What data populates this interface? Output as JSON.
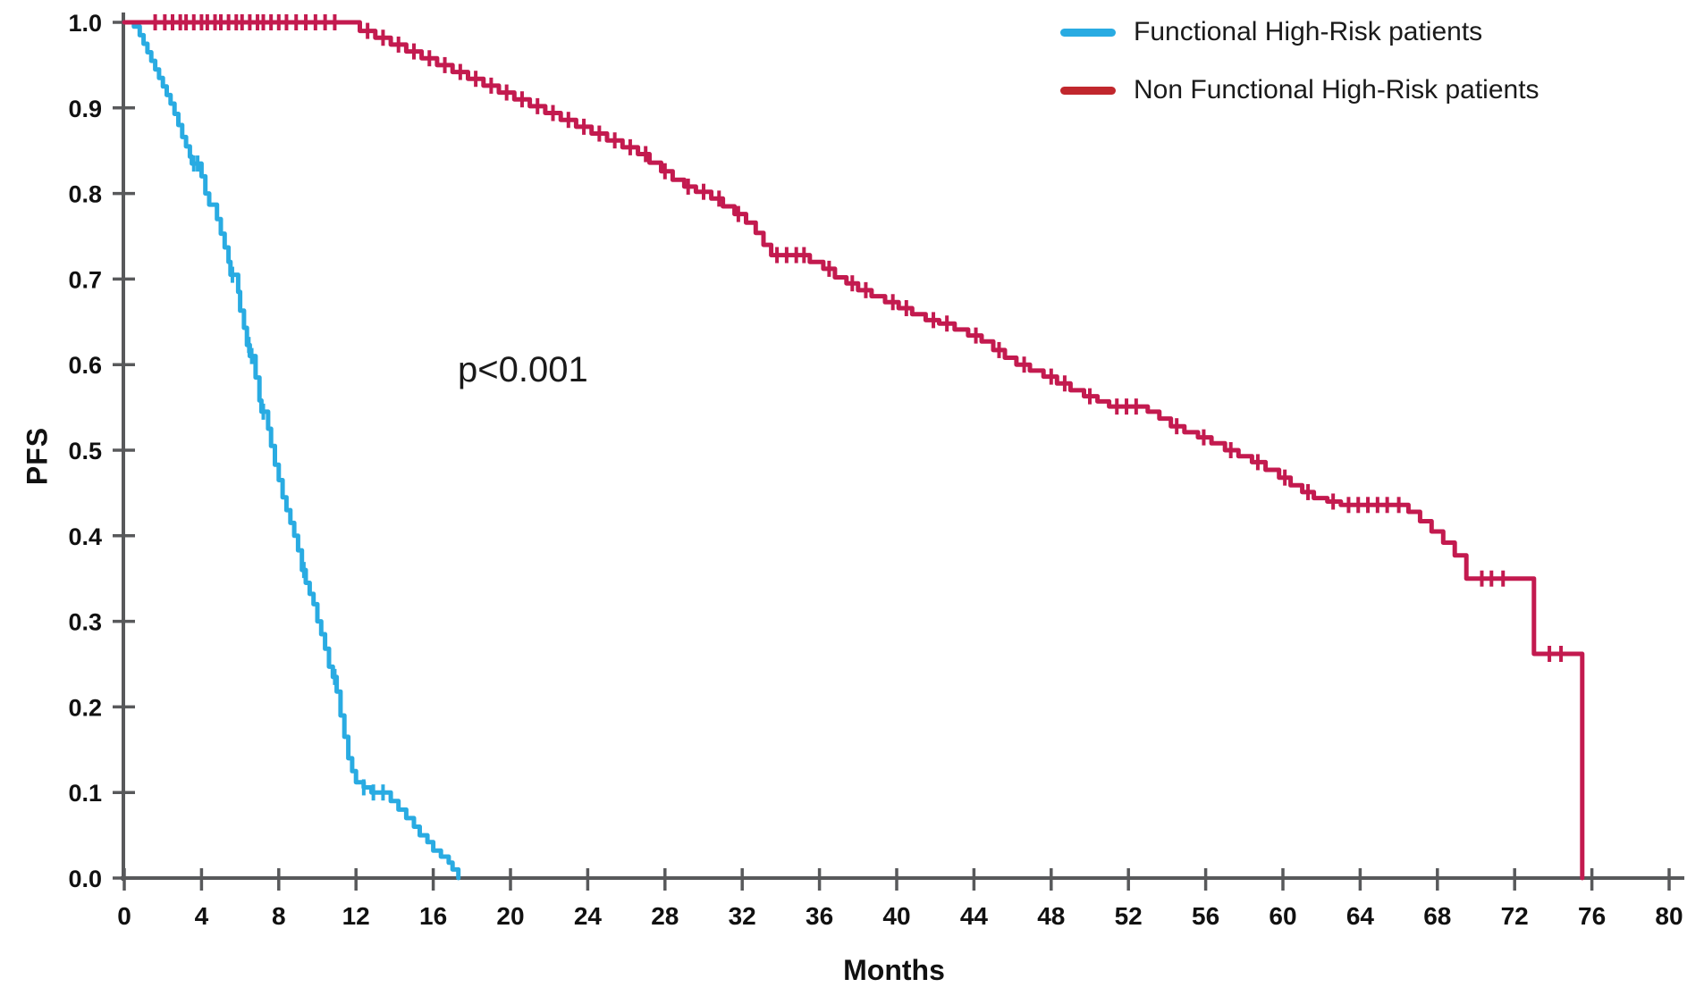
{
  "chart_data": {
    "type": "line",
    "variant": "kaplan_meier_step",
    "title": "",
    "xlabel": "Months",
    "ylabel": "PFS",
    "annotation": {
      "text": "p<0.001",
      "x_month": 14.2,
      "y_value": 0.595
    },
    "xlim": [
      0,
      80
    ],
    "ylim": [
      0.0,
      1.0
    ],
    "xticks": [
      0,
      4,
      8,
      12,
      16,
      20,
      24,
      28,
      32,
      36,
      40,
      44,
      48,
      52,
      56,
      60,
      64,
      68,
      72,
      76,
      80
    ],
    "yticks": [
      0.0,
      0.1,
      0.2,
      0.3,
      0.4,
      0.5,
      0.6,
      0.7,
      0.8,
      0.9,
      1.0
    ],
    "grid": false,
    "legend_position": "top-right",
    "axis_color": "#58595B",
    "text_color": "#111111",
    "series": [
      {
        "name": "Functional High-Risk patients",
        "color": "#29ABE2",
        "legend_color": "#29ABE2",
        "points": [
          [
            0,
            1.0
          ],
          [
            0.5,
            0.995
          ],
          [
            0.8,
            0.985
          ],
          [
            1.0,
            0.975
          ],
          [
            1.2,
            0.965
          ],
          [
            1.4,
            0.955
          ],
          [
            1.6,
            0.945
          ],
          [
            1.8,
            0.935
          ],
          [
            2.0,
            0.925
          ],
          [
            2.2,
            0.915
          ],
          [
            2.4,
            0.905
          ],
          [
            2.6,
            0.893
          ],
          [
            2.8,
            0.88
          ],
          [
            3.0,
            0.866
          ],
          [
            3.2,
            0.855
          ],
          [
            3.4,
            0.843
          ],
          [
            3.5,
            0.835
          ],
          [
            4.0,
            0.82
          ],
          [
            4.2,
            0.8
          ],
          [
            4.4,
            0.787
          ],
          [
            4.8,
            0.77
          ],
          [
            5.0,
            0.753
          ],
          [
            5.2,
            0.737
          ],
          [
            5.4,
            0.72
          ],
          [
            5.5,
            0.705
          ],
          [
            5.9,
            0.685
          ],
          [
            6.0,
            0.663
          ],
          [
            6.2,
            0.643
          ],
          [
            6.35,
            0.623
          ],
          [
            6.5,
            0.61
          ],
          [
            6.8,
            0.585
          ],
          [
            7.0,
            0.558
          ],
          [
            7.1,
            0.545
          ],
          [
            7.45,
            0.525
          ],
          [
            7.6,
            0.505
          ],
          [
            7.8,
            0.483
          ],
          [
            8.0,
            0.465
          ],
          [
            8.2,
            0.445
          ],
          [
            8.4,
            0.43
          ],
          [
            8.6,
            0.415
          ],
          [
            8.8,
            0.4
          ],
          [
            9.0,
            0.383
          ],
          [
            9.2,
            0.36
          ],
          [
            9.4,
            0.345
          ],
          [
            9.6,
            0.332
          ],
          [
            9.8,
            0.32
          ],
          [
            10.0,
            0.3
          ],
          [
            10.2,
            0.285
          ],
          [
            10.4,
            0.268
          ],
          [
            10.6,
            0.247
          ],
          [
            10.8,
            0.235
          ],
          [
            11.0,
            0.218
          ],
          [
            11.2,
            0.19
          ],
          [
            11.4,
            0.165
          ],
          [
            11.6,
            0.14
          ],
          [
            11.8,
            0.125
          ],
          [
            12.0,
            0.112
          ],
          [
            12.4,
            0.106
          ],
          [
            12.8,
            0.1
          ],
          [
            13.8,
            0.09
          ],
          [
            14.2,
            0.08
          ],
          [
            14.6,
            0.07
          ],
          [
            15.0,
            0.06
          ],
          [
            15.3,
            0.05
          ],
          [
            15.7,
            0.042
          ],
          [
            16.0,
            0.032
          ],
          [
            16.4,
            0.025
          ],
          [
            16.8,
            0.018
          ],
          [
            17.0,
            0.01
          ],
          [
            17.3,
            0.0
          ]
        ],
        "censors": [
          3.6,
          3.8,
          5.6,
          6.45,
          6.6,
          7.2,
          9.3,
          10.9,
          12.4,
          12.9,
          13.4
        ]
      },
      {
        "name": "Non Functional High-Risk patients",
        "color": "#C31A4F",
        "legend_color": "#C1272D",
        "points": [
          [
            0,
            1.0
          ],
          [
            11.4,
            1.0
          ],
          [
            12.2,
            0.99
          ],
          [
            13.0,
            0.982
          ],
          [
            13.8,
            0.974
          ],
          [
            14.6,
            0.966
          ],
          [
            15.4,
            0.958
          ],
          [
            16.2,
            0.95
          ],
          [
            17.0,
            0.942
          ],
          [
            17.8,
            0.934
          ],
          [
            18.6,
            0.926
          ],
          [
            19.4,
            0.918
          ],
          [
            20.2,
            0.91
          ],
          [
            21.0,
            0.902
          ],
          [
            21.8,
            0.894
          ],
          [
            22.6,
            0.886
          ],
          [
            23.4,
            0.878
          ],
          [
            24.2,
            0.87
          ],
          [
            25.0,
            0.862
          ],
          [
            25.8,
            0.854
          ],
          [
            26.6,
            0.846
          ],
          [
            27.2,
            0.836
          ],
          [
            27.8,
            0.826
          ],
          [
            28.4,
            0.816
          ],
          [
            29.0,
            0.808
          ],
          [
            29.6,
            0.802
          ],
          [
            30.4,
            0.794
          ],
          [
            31.0,
            0.785
          ],
          [
            31.6,
            0.776
          ],
          [
            32.2,
            0.766
          ],
          [
            32.7,
            0.754
          ],
          [
            33.1,
            0.74
          ],
          [
            33.5,
            0.728
          ],
          [
            35.5,
            0.72
          ],
          [
            36.2,
            0.712
          ],
          [
            36.8,
            0.702
          ],
          [
            37.4,
            0.695
          ],
          [
            38.0,
            0.687
          ],
          [
            38.7,
            0.68
          ],
          [
            39.4,
            0.673
          ],
          [
            40.1,
            0.666
          ],
          [
            40.8,
            0.659
          ],
          [
            41.5,
            0.652
          ],
          [
            42.2,
            0.648
          ],
          [
            43.0,
            0.641
          ],
          [
            43.7,
            0.634
          ],
          [
            44.4,
            0.627
          ],
          [
            45.0,
            0.617
          ],
          [
            45.6,
            0.608
          ],
          [
            46.2,
            0.6
          ],
          [
            46.9,
            0.593
          ],
          [
            47.6,
            0.586
          ],
          [
            48.3,
            0.578
          ],
          [
            49.0,
            0.57
          ],
          [
            49.7,
            0.563
          ],
          [
            50.4,
            0.557
          ],
          [
            51.0,
            0.551
          ],
          [
            53.0,
            0.545
          ],
          [
            53.6,
            0.537
          ],
          [
            54.2,
            0.528
          ],
          [
            54.9,
            0.521
          ],
          [
            55.6,
            0.515
          ],
          [
            56.3,
            0.508
          ],
          [
            57.0,
            0.5
          ],
          [
            57.7,
            0.493
          ],
          [
            58.4,
            0.486
          ],
          [
            59.1,
            0.477
          ],
          [
            59.8,
            0.468
          ],
          [
            60.4,
            0.459
          ],
          [
            61.0,
            0.451
          ],
          [
            61.6,
            0.444
          ],
          [
            62.3,
            0.44
          ],
          [
            63.0,
            0.436
          ],
          [
            66.5,
            0.428
          ],
          [
            67.1,
            0.417
          ],
          [
            67.7,
            0.405
          ],
          [
            68.3,
            0.392
          ],
          [
            68.9,
            0.377
          ],
          [
            69.5,
            0.35
          ],
          [
            73.0,
            0.262
          ],
          [
            75.5,
            0.0
          ]
        ],
        "censors": [
          1.6,
          2.1,
          2.5,
          2.9,
          3.2,
          3.6,
          4.0,
          4.3,
          4.7,
          5.0,
          5.4,
          5.8,
          6.1,
          6.5,
          6.9,
          7.2,
          7.6,
          8.0,
          8.4,
          8.9,
          9.4,
          9.9,
          10.4,
          10.9,
          12.6,
          13.4,
          14.2,
          15.0,
          15.8,
          16.6,
          17.4,
          18.2,
          19.0,
          19.8,
          20.6,
          21.4,
          22.2,
          23.0,
          23.8,
          24.6,
          25.4,
          26.2,
          27.0,
          28.0,
          29.2,
          30.0,
          30.8,
          31.8,
          33.8,
          34.3,
          34.8,
          35.2,
          36.5,
          37.7,
          38.4,
          39.8,
          40.5,
          41.9,
          42.6,
          44.1,
          45.3,
          46.6,
          48.0,
          48.7,
          50.0,
          51.4,
          51.9,
          52.4,
          54.5,
          55.9,
          57.3,
          58.7,
          60.1,
          61.3,
          62.6,
          63.4,
          63.9,
          64.4,
          64.9,
          65.4,
          66.0,
          70.3,
          70.8,
          71.4,
          73.8,
          74.4
        ]
      }
    ]
  }
}
